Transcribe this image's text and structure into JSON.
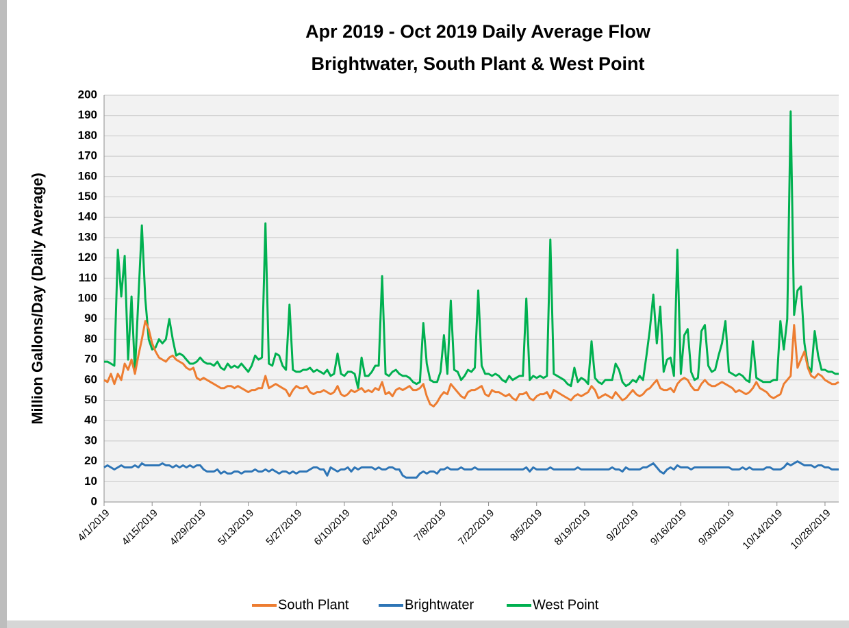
{
  "chart_data": {
    "type": "line",
    "title": "Apr 2019 - Oct 2019 Daily Average Flow",
    "subtitle": "Brightwater, South Plant & West Point",
    "ylabel": "Million Gallons/Day (Daily Average)",
    "categories": [
      "4/1/2019",
      null,
      null,
      null,
      null,
      null,
      null,
      null,
      null,
      null,
      null,
      null,
      null,
      null,
      "4/15/2019",
      null,
      null,
      null,
      null,
      null,
      null,
      null,
      null,
      null,
      null,
      null,
      null,
      null,
      "4/29/2019",
      null,
      null,
      null,
      null,
      null,
      null,
      null,
      null,
      null,
      null,
      null,
      null,
      null,
      "5/13/2019",
      null,
      null,
      null,
      null,
      null,
      null,
      null,
      null,
      null,
      null,
      null,
      null,
      null,
      "5/27/2019",
      null,
      null,
      null,
      null,
      null,
      null,
      null,
      null,
      null,
      null,
      null,
      null,
      null,
      "6/10/2019",
      null,
      null,
      null,
      null,
      null,
      null,
      null,
      null,
      null,
      null,
      null,
      null,
      null,
      "6/24/2019",
      null,
      null,
      null,
      null,
      null,
      null,
      null,
      null,
      null,
      null,
      null,
      null,
      null,
      "7/8/2019",
      null,
      null,
      null,
      null,
      null,
      null,
      null,
      null,
      null,
      null,
      null,
      null,
      null,
      "7/22/2019",
      null,
      null,
      null,
      null,
      null,
      null,
      null,
      null,
      null,
      null,
      null,
      null,
      null,
      "8/5/2019",
      null,
      null,
      null,
      null,
      null,
      null,
      null,
      null,
      null,
      null,
      null,
      null,
      null,
      "8/19/2019",
      null,
      null,
      null,
      null,
      null,
      null,
      null,
      null,
      null,
      null,
      null,
      null,
      null,
      "9/2/2019",
      null,
      null,
      null,
      null,
      null,
      null,
      null,
      null,
      null,
      null,
      null,
      null,
      null,
      "9/16/2019",
      null,
      null,
      null,
      null,
      null,
      null,
      null,
      null,
      null,
      null,
      null,
      null,
      null,
      "9/30/2019",
      null,
      null,
      null,
      null,
      null,
      null,
      null,
      null,
      null,
      null,
      null,
      null,
      null,
      "10/14/2019",
      null,
      null,
      null,
      null,
      null,
      null,
      null,
      null,
      null,
      null,
      null,
      null,
      null,
      "10/28/2019",
      null,
      null,
      null,
      null
    ],
    "series": [
      {
        "name": "South Plant",
        "color": "#ed7d31",
        "values": [
          60,
          59,
          63,
          58,
          63,
          60,
          68,
          65,
          70,
          63,
          72,
          80,
          89,
          85,
          78,
          74,
          71,
          70,
          69,
          71,
          72,
          70,
          69,
          68,
          66,
          65,
          66,
          61,
          60,
          61,
          60,
          59,
          58,
          57,
          56,
          56,
          57,
          57,
          56,
          57,
          56,
          55,
          54,
          55,
          55,
          56,
          56,
          62,
          56,
          57,
          58,
          57,
          56,
          55,
          52,
          55,
          57,
          56,
          56,
          57,
          54,
          53,
          54,
          54,
          55,
          54,
          53,
          54,
          57,
          53,
          52,
          53,
          55,
          54,
          55,
          56,
          54,
          55,
          54,
          56,
          55,
          59,
          53,
          54,
          52,
          55,
          56,
          55,
          56,
          57,
          55,
          55,
          56,
          58,
          52,
          48,
          47,
          49,
          52,
          54,
          53,
          58,
          56,
          54,
          52,
          51,
          54,
          55,
          55,
          56,
          57,
          53,
          52,
          55,
          54,
          54,
          53,
          52,
          53,
          51,
          50,
          53,
          53,
          54,
          51,
          50,
          52,
          53,
          53,
          54,
          51,
          55,
          54,
          53,
          52,
          51,
          50,
          52,
          53,
          52,
          53,
          54,
          57,
          55,
          51,
          52,
          53,
          52,
          51,
          54,
          52,
          50,
          51,
          53,
          55,
          53,
          52,
          53,
          55,
          56,
          58,
          60,
          56,
          55,
          55,
          56,
          54,
          58,
          60,
          61,
          60,
          57,
          55,
          55,
          58,
          60,
          58,
          57,
          57,
          58,
          59,
          58,
          57,
          56,
          54,
          55,
          54,
          53,
          54,
          56,
          59,
          56,
          55,
          54,
          52,
          51,
          52,
          53,
          58,
          60,
          62,
          87,
          66,
          70,
          74,
          66,
          62,
          61,
          63,
          62,
          60,
          59,
          58,
          58,
          59
        ]
      },
      {
        "name": "Brightwater",
        "color": "#2e75b6",
        "values": [
          17,
          18,
          17,
          16,
          17,
          18,
          17,
          17,
          17,
          18,
          17,
          19,
          18,
          18,
          18,
          18,
          18,
          19,
          18,
          18,
          17,
          18,
          17,
          18,
          17,
          18,
          17,
          18,
          18,
          16,
          15,
          15,
          15,
          16,
          14,
          15,
          14,
          14,
          15,
          15,
          14,
          15,
          15,
          15,
          16,
          15,
          15,
          16,
          15,
          16,
          15,
          14,
          15,
          15,
          14,
          15,
          14,
          15,
          15,
          15,
          16,
          17,
          17,
          16,
          16,
          13,
          17,
          16,
          15,
          16,
          16,
          17,
          15,
          17,
          16,
          17,
          17,
          17,
          17,
          16,
          17,
          16,
          16,
          17,
          17,
          16,
          16,
          13,
          12,
          12,
          12,
          12,
          14,
          15,
          14,
          15,
          15,
          14,
          16,
          16,
          17,
          16,
          16,
          16,
          17,
          16,
          16,
          16,
          17,
          16,
          16,
          16,
          16,
          16,
          16,
          16,
          16,
          16,
          16,
          16,
          16,
          16,
          16,
          17,
          15,
          17,
          16,
          16,
          16,
          16,
          17,
          16,
          16,
          16,
          16,
          16,
          16,
          16,
          17,
          16,
          16,
          16,
          16,
          16,
          16,
          16,
          16,
          16,
          17,
          16,
          16,
          15,
          17,
          16,
          16,
          16,
          16,
          17,
          17,
          18,
          19,
          17,
          15,
          14,
          16,
          17,
          16,
          18,
          17,
          17,
          17,
          16,
          17,
          17,
          17,
          17,
          17,
          17,
          17,
          17,
          17,
          17,
          17,
          16,
          16,
          16,
          17,
          16,
          17,
          16,
          16,
          16,
          16,
          17,
          17,
          16,
          16,
          16,
          17,
          19,
          18,
          19,
          20,
          19,
          18,
          18,
          18,
          17,
          18,
          18,
          17,
          17,
          16,
          16,
          16
        ]
      },
      {
        "name": "West Point",
        "color": "#00b050",
        "values": [
          69,
          69,
          68,
          67,
          124,
          101,
          121,
          70,
          101,
          64,
          100,
          136,
          100,
          80,
          75,
          76,
          80,
          78,
          80,
          90,
          80,
          72,
          73,
          72,
          70,
          68,
          68,
          69,
          71,
          69,
          68,
          68,
          67,
          69,
          66,
          65,
          68,
          66,
          67,
          66,
          68,
          66,
          64,
          67,
          72,
          70,
          71,
          137,
          68,
          67,
          73,
          72,
          67,
          65,
          97,
          65,
          64,
          64,
          65,
          65,
          66,
          64,
          65,
          64,
          63,
          65,
          62,
          63,
          73,
          63,
          62,
          64,
          64,
          63,
          56,
          71,
          62,
          62,
          64,
          67,
          67,
          111,
          63,
          62,
          64,
          65,
          63,
          62,
          62,
          61,
          59,
          58,
          59,
          88,
          68,
          60,
          59,
          59,
          64,
          82,
          63,
          99,
          65,
          64,
          60,
          62,
          65,
          64,
          66,
          104,
          67,
          63,
          63,
          62,
          63,
          62,
          60,
          59,
          62,
          60,
          61,
          62,
          62,
          100,
          60,
          62,
          61,
          62,
          61,
          62,
          129,
          63,
          62,
          61,
          60,
          58,
          57,
          66,
          59,
          61,
          60,
          58,
          79,
          61,
          59,
          58,
          60,
          60,
          60,
          68,
          65,
          59,
          57,
          58,
          60,
          59,
          62,
          60,
          72,
          85,
          102,
          78,
          96,
          64,
          70,
          71,
          62,
          124,
          63,
          82,
          85,
          64,
          60,
          61,
          84,
          87,
          67,
          64,
          65,
          72,
          78,
          89,
          64,
          63,
          62,
          63,
          62,
          60,
          59,
          79,
          61,
          60,
          59,
          59,
          59,
          60,
          60,
          89,
          75,
          90,
          192,
          92,
          104,
          106,
          78,
          67,
          64,
          84,
          72,
          65,
          65,
          64,
          64,
          63,
          63
        ]
      }
    ],
    "ylim": [
      0,
      200
    ],
    "yticks": [
      0,
      10,
      20,
      30,
      40,
      50,
      60,
      70,
      80,
      90,
      100,
      110,
      120,
      130,
      140,
      150,
      160,
      170,
      180,
      190,
      200
    ],
    "grid": true
  }
}
